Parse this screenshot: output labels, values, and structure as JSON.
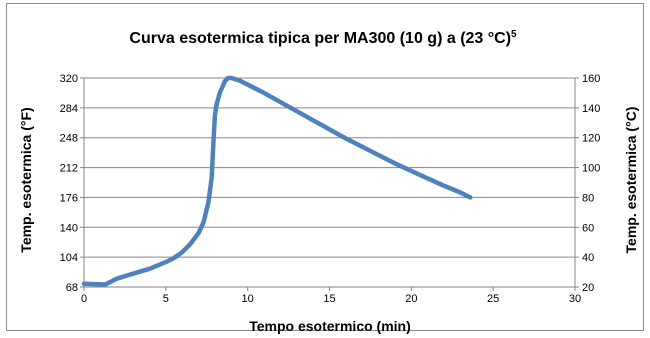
{
  "chart_data": {
    "type": "line",
    "title": "Curva esotermica tipica per MA300  (10 g) a (23 °C)",
    "title_superscript": "5",
    "xlabel": "Tempo esotermico (min)",
    "ylabel": "Temp. esotermica (°F)",
    "y2label": "Temp. esotermica (°C)",
    "xlim": [
      0,
      30
    ],
    "ylim": [
      68,
      320
    ],
    "y2lim": [
      20,
      160
    ],
    "x_ticks": [
      "0",
      "5",
      "10",
      "15",
      "20",
      "25",
      "30"
    ],
    "y_ticks": [
      "68",
      "104",
      "140",
      "176",
      "212",
      "248",
      "284",
      "320"
    ],
    "y2_ticks": [
      "20",
      "40",
      "60",
      "80",
      "100",
      "120",
      "140",
      "160"
    ],
    "grid": true,
    "legend": "none",
    "colors": {
      "line": "#4F81BD",
      "grid": "#868686",
      "axis": "#868686"
    },
    "series": [
      {
        "x": [
          0,
          1.3,
          1.6,
          2,
          3,
          4,
          5,
          5.5,
          6,
          6.5,
          7,
          7.3,
          7.6,
          7.8,
          7.9,
          8.0,
          8.1,
          8.3,
          8.6,
          8.8,
          9.0,
          9.5,
          10,
          11,
          12,
          13,
          14,
          15,
          16,
          17,
          18,
          19,
          20,
          21,
          22,
          23,
          23.6
        ],
        "y": [
          72,
          71,
          74,
          78,
          84,
          90,
          98,
          103,
          110,
          120,
          133,
          146,
          170,
          200,
          240,
          275,
          288,
          302,
          316,
          320,
          320,
          317,
          312,
          302,
          291,
          280,
          269,
          258,
          247,
          237,
          227,
          217,
          208,
          199,
          190,
          182,
          176
        ]
      }
    ]
  }
}
